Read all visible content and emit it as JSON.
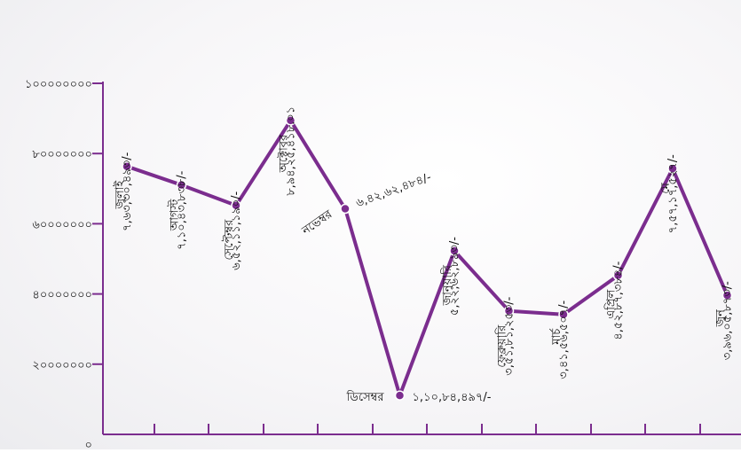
{
  "chart_data": {
    "type": "line",
    "categories": [
      "জুলাই",
      "আগস্ট",
      "সেপ্টেম্বর",
      "অক্টোবর",
      "নভেম্বর",
      "ডিসেম্বর",
      "জানুয়ারি",
      "ফেব্রুয়ারি",
      "মার্চ",
      "এপ্রিল",
      "মে",
      "জুন"
    ],
    "values": [
      76330493,
      71040838,
      65211190,
      89425418,
      64262484,
      11084497,
      52262893,
      35181253,
      34156507,
      45287384,
      75717527,
      39605873
    ],
    "data_labels": [
      "৭,৬৩,৩০,৪৯৩/-",
      "৭,১০,৪৩,৮৩৮/-",
      "৬,৫২,১১,১৯০/-",
      "৮,৯৪,২৫,৪১৮.০১",
      "৬,৪২,৬২,৪৮৪/-",
      "১,১০,৮৪,৪৯৭/-",
      "৫,২২,৬২,৮৯৩/-",
      "৩,৫১,৮১,২৫৩/-",
      "৩,৪১,৫৬,৫০৭/-",
      "৪,৫২,৮৭,৩৮৪/-",
      "৭,৫৭,১৭,৫২৭/-",
      "৩,৯৬,০৫,৮৭৩/-"
    ],
    "ylim": [
      0,
      100000000
    ],
    "y_ticks": [
      0,
      20000000,
      40000000,
      60000000,
      80000000,
      100000000
    ],
    "y_tick_labels": [
      "০",
      "২০০০০০০০",
      "৪০০০০০০০",
      "৬০০০০০০০",
      "৮০০০০০০০",
      "১০০০০০০০০"
    ],
    "xlabel": "",
    "ylabel": "",
    "title": "",
    "grid": false,
    "legend": false,
    "colors": {
      "line": "#7b2d8e",
      "axis": "#7b2d8e",
      "text": "#111111"
    }
  }
}
